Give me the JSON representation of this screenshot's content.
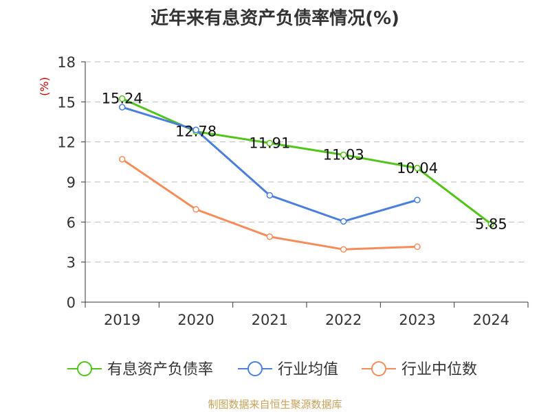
{
  "chart_data": {
    "type": "line",
    "title": "近年来有息资产负债率情况(%)",
    "ylabel": "(%)",
    "categories": [
      "2019",
      "2020",
      "2021",
      "2022",
      "2023",
      "2024"
    ],
    "y_ticks": [
      "0",
      "3",
      "6",
      "9",
      "12",
      "15",
      "18"
    ],
    "ylim": [
      0,
      18
    ],
    "grid": true,
    "legend_position": "bottom",
    "series": [
      {
        "name": "有息资产负债率",
        "color": "#52c41a",
        "values": [
          15.24,
          12.78,
          11.91,
          11.03,
          10.04,
          5.85
        ],
        "labels": [
          "15.24",
          "12.78",
          "11.91",
          "11.03",
          "10.04",
          "5.85"
        ]
      },
      {
        "name": "行业均值",
        "color": "#4a7fdc",
        "values": [
          14.6,
          12.9,
          8.0,
          6.05,
          7.65,
          null
        ]
      },
      {
        "name": "行业中位数",
        "color": "#f58c5a",
        "values": [
          10.7,
          6.95,
          4.9,
          3.95,
          4.15,
          null
        ]
      }
    ]
  },
  "source_text": "制图数据来自恒生聚源数据库"
}
